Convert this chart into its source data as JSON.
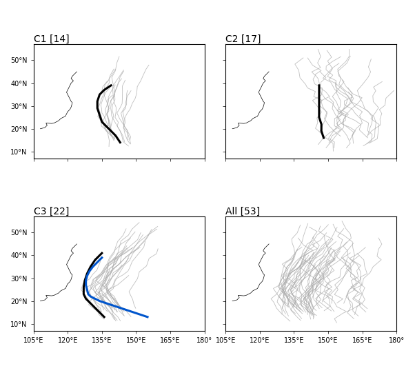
{
  "titles": [
    "C1 [14]",
    "C2 [17]",
    "C3 [22]",
    "All [53]"
  ],
  "lon_range": [
    105,
    180
  ],
  "lat_range": [
    7,
    57
  ],
  "xticks": [
    105,
    120,
    135,
    150,
    165,
    180
  ],
  "yticks": [
    10,
    20,
    30,
    40,
    50
  ],
  "xtick_labels": [
    "105°E",
    "120°E",
    "135°E",
    "150°E",
    "165°E",
    "180°"
  ],
  "ytick_labels": [
    "10°N",
    "20°N",
    "30°N",
    "40°N",
    "50°N"
  ],
  "track_color_gray": "#aaaaaa",
  "track_color_black": "#000000",
  "track_color_blue": "#0055cc",
  "background_color": "#ffffff",
  "c1_mean_lons": [
    143,
    141,
    139,
    137,
    135,
    134,
    133,
    133,
    134,
    136,
    139
  ],
  "c1_mean_lats": [
    14,
    17,
    19,
    21,
    23,
    26,
    29,
    32,
    35,
    37,
    39
  ],
  "c2_mean_lons": [
    148,
    147,
    147,
    146,
    146,
    146,
    146,
    146,
    146
  ],
  "c2_mean_lats": [
    16,
    19,
    22,
    25,
    28,
    31,
    34,
    37,
    39
  ],
  "c3_mean_lons": [
    136,
    134,
    132,
    130,
    128,
    127,
    127,
    127.5,
    128.5,
    130,
    132,
    135
  ],
  "c3_mean_lats": [
    13,
    15,
    17,
    19,
    21,
    23,
    26,
    29,
    32,
    35,
    38,
    41
  ],
  "jebi_lons": [
    155,
    152,
    149,
    146,
    143,
    140,
    137,
    134,
    132,
    130,
    129,
    128.5,
    128,
    128,
    128.5,
    129.5,
    131,
    133,
    135
  ],
  "jebi_lats": [
    13,
    14,
    15,
    16,
    17,
    18,
    19,
    20,
    21,
    22,
    23,
    25,
    27,
    29,
    31,
    33,
    35,
    37,
    39
  ]
}
